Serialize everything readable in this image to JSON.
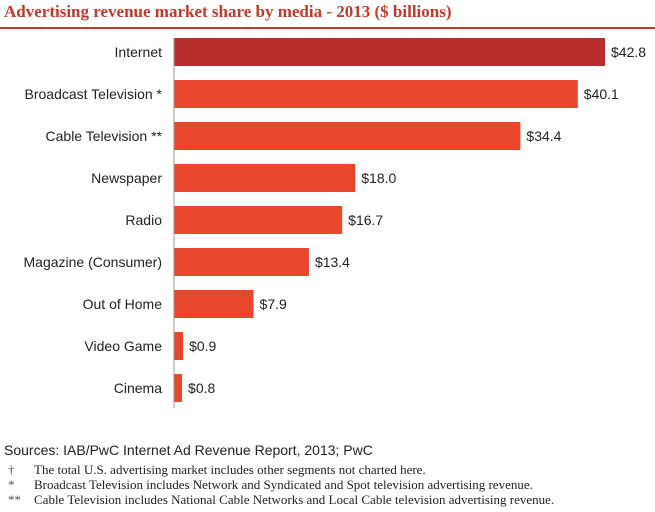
{
  "chart_data": {
    "type": "bar",
    "orientation": "horizontal",
    "title": "Advertising revenue market share by media - 2013 ($ billions)",
    "categories": [
      "Internet",
      "Broadcast Television *",
      "Cable Television **",
      "Newspaper",
      "Radio",
      "Magazine (Consumer)",
      "Out of Home",
      "Video Game",
      "Cinema"
    ],
    "values": [
      42.8,
      40.1,
      34.4,
      18.0,
      16.7,
      13.4,
      7.9,
      0.9,
      0.8
    ],
    "value_labels": [
      "$42.8",
      "$40.1",
      "$34.4",
      "$18.0",
      "$16.7",
      "$13.4",
      "$7.9",
      "$0.9",
      "$0.8"
    ],
    "highlight_index": 0,
    "colors": {
      "highlight": "#b52d2d",
      "bar": "#e8472b",
      "axis": "#999999",
      "title": "#c0392b"
    },
    "xlim": [
      0,
      42.8
    ],
    "grid": false
  },
  "sources": "Sources: IAB/PwC Internet Ad Revenue Report, 2013; PwC",
  "notes": [
    {
      "mark": "†",
      "text": "The total U.S. advertising market includes other segments not charted here."
    },
    {
      "mark": "*",
      "text": "Broadcast Television includes Network and Syndicated and Spot television advertising revenue."
    },
    {
      "mark": "**",
      "text": "Cable Television includes National Cable Networks and Local Cable television advertising revenue."
    }
  ]
}
